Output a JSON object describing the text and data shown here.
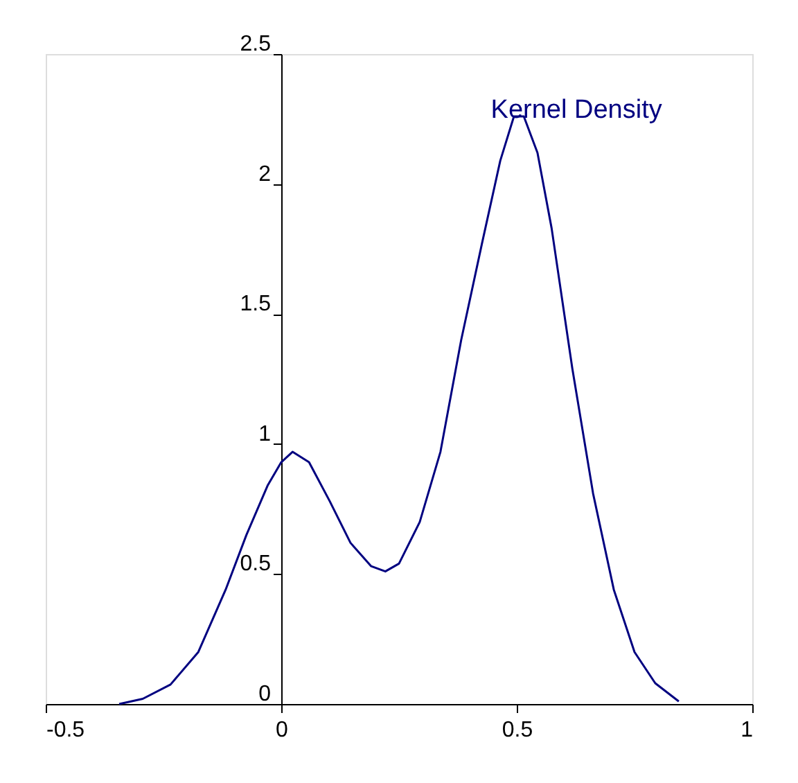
{
  "chart_data": {
    "type": "line",
    "x": [
      -0.344,
      -0.294,
      -0.235,
      -0.176,
      -0.118,
      -0.074,
      -0.029,
      0,
      0.024,
      0.059,
      0.103,
      0.147,
      0.191,
      0.221,
      0.25,
      0.294,
      0.338,
      0.382,
      0.426,
      0.465,
      0.494,
      0.515,
      0.544,
      0.574,
      0.618,
      0.662,
      0.706,
      0.75,
      0.794,
      0.844
    ],
    "series": [
      {
        "name": "Kernel Density",
        "color": "#000080",
        "values": [
          0,
          0.02,
          0.075,
          0.2,
          0.44,
          0.65,
          0.84,
          0.93,
          0.97,
          0.93,
          0.78,
          0.62,
          0.53,
          0.51,
          0.54,
          0.7,
          0.97,
          1.4,
          1.77,
          2.09,
          2.26,
          2.26,
          2.12,
          1.83,
          1.29,
          0.81,
          0.44,
          0.2,
          0.08,
          0.01
        ]
      }
    ],
    "xlim": [
      -0.5,
      1
    ],
    "xticks": [
      -0.5,
      0,
      0.5,
      1
    ],
    "ylim": [
      0,
      2.5
    ],
    "yticks": [
      0,
      0.5,
      1,
      1.5,
      2,
      2.5
    ],
    "grid": false,
    "legend": false,
    "marker": "none",
    "line_style": "solid"
  }
}
